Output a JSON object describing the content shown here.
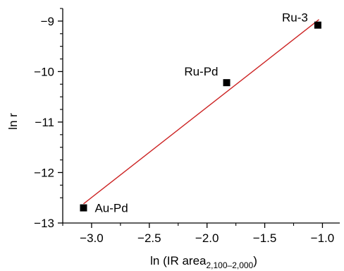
{
  "chart_data": {
    "type": "scatter",
    "xlabel": "ln (IR area",
    "xlabel_subscript": "2,100–2,000",
    "xlabel_suffix": ")",
    "ylabel": "ln r",
    "xlim": [
      -3.25,
      -0.85
    ],
    "ylim": [
      -13,
      -8.75
    ],
    "x_ticks": [
      -3.0,
      -2.5,
      -2.0,
      -1.5,
      -1.0
    ],
    "x_tick_labels": [
      "−3.0",
      "−2.5",
      "−2.0",
      "−1.5",
      "−1.0"
    ],
    "y_ticks": [
      -13,
      -12,
      -11,
      -10,
      -9
    ],
    "y_tick_labels": [
      "−13",
      "−12",
      "−11",
      "−10",
      "−9"
    ],
    "grid": false,
    "points": [
      {
        "label": "Au-Pd",
        "x": -3.07,
        "y": -12.7
      },
      {
        "label": "Ru-Pd",
        "x": -1.83,
        "y": -10.22
      },
      {
        "label": "Ru-3",
        "x": -1.04,
        "y": -9.08
      }
    ],
    "fit_line": {
      "x": [
        -3.07,
        -1.03
      ],
      "y": [
        -12.62,
        -8.97
      ]
    },
    "colors": {
      "points": "#000000",
      "fit_line": "#cc2222",
      "axis": "#000000"
    }
  }
}
